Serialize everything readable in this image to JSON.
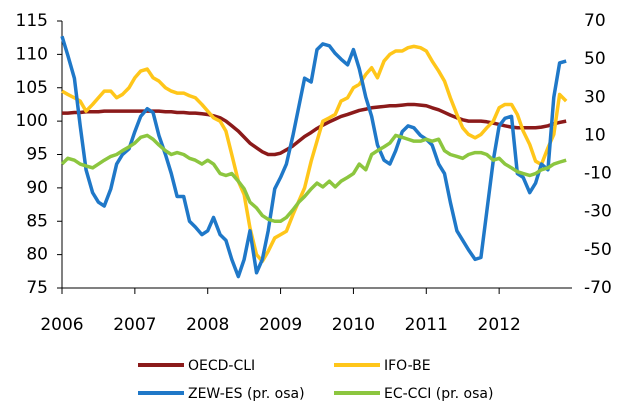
{
  "chart_data": {
    "type": "line",
    "x": [
      2006.0,
      2006.08,
      2006.17,
      2006.25,
      2006.33,
      2006.42,
      2006.5,
      2006.58,
      2006.67,
      2006.75,
      2006.83,
      2006.92,
      2007.0,
      2007.08,
      2007.17,
      2007.25,
      2007.33,
      2007.42,
      2007.5,
      2007.58,
      2007.67,
      2007.75,
      2007.83,
      2007.92,
      2008.0,
      2008.08,
      2008.17,
      2008.25,
      2008.33,
      2008.42,
      2008.5,
      2008.58,
      2008.67,
      2008.75,
      2008.83,
      2008.92,
      2009.0,
      2009.08,
      2009.17,
      2009.25,
      2009.33,
      2009.42,
      2009.5,
      2009.58,
      2009.67,
      2009.75,
      2009.83,
      2009.92,
      2010.0,
      2010.08,
      2010.17,
      2010.25,
      2010.33,
      2010.42,
      2010.5,
      2010.58,
      2010.67,
      2010.75,
      2010.83,
      2010.92,
      2011.0,
      2011.08,
      2011.17,
      2011.25,
      2011.33,
      2011.42,
      2011.5,
      2011.58,
      2011.67,
      2011.75,
      2011.83,
      2011.92,
      2012.0,
      2012.08,
      2012.17,
      2012.25,
      2012.33,
      2012.42,
      2012.5,
      2012.58,
      2012.67,
      2012.75,
      2012.83,
      2012.92
    ],
    "series": [
      {
        "name": "OECD-CLI",
        "color": "#8b1a1a",
        "axis": "y",
        "values": [
          101.2,
          101.2,
          101.3,
          101.3,
          101.4,
          101.4,
          101.4,
          101.5,
          101.5,
          101.5,
          101.5,
          101.5,
          101.5,
          101.5,
          101.5,
          101.5,
          101.5,
          101.4,
          101.4,
          101.3,
          101.3,
          101.2,
          101.2,
          101.1,
          101.0,
          100.8,
          100.5,
          100.0,
          99.3,
          98.5,
          97.6,
          96.7,
          96.0,
          95.4,
          95.0,
          95.0,
          95.2,
          95.7,
          96.3,
          97.0,
          97.7,
          98.3,
          98.9,
          99.4,
          99.9,
          100.3,
          100.7,
          101.0,
          101.3,
          101.6,
          101.8,
          102.0,
          102.1,
          102.2,
          102.3,
          102.3,
          102.4,
          102.5,
          102.5,
          102.4,
          102.3,
          102.0,
          101.7,
          101.3,
          100.9,
          100.5,
          100.2,
          100.0,
          100.0,
          100.0,
          99.9,
          99.7,
          99.5,
          99.3,
          99.1,
          99.0,
          99.0,
          99.0,
          99.0,
          99.1,
          99.3,
          99.6,
          99.8,
          100.0
        ]
      },
      {
        "name": "IFO-BE",
        "color": "#ffc61a",
        "axis": "y",
        "values": [
          104.5,
          104,
          103.5,
          103,
          101.5,
          102.5,
          103.5,
          104.5,
          104.5,
          103.5,
          104,
          105,
          106.5,
          107.5,
          107.8,
          106.5,
          106,
          105,
          104.5,
          104.2,
          104.2,
          103.8,
          103.5,
          102.5,
          101.5,
          100.5,
          100,
          98.5,
          95,
          91,
          89,
          84,
          80,
          79,
          80.5,
          82.5,
          83,
          83.5,
          86,
          88,
          90,
          94,
          97,
          100,
          100.5,
          101,
          103,
          103.5,
          105,
          105.5,
          107,
          108,
          106.5,
          109,
          110,
          110.5,
          110.5,
          111,
          111.2,
          111,
          110.5,
          109,
          107.5,
          106,
          103.5,
          101,
          99,
          98,
          97.5,
          98,
          99,
          100,
          102,
          102.5,
          102.5,
          101,
          98.5,
          96.5,
          94,
          93.5,
          96,
          98,
          104,
          103
        ]
      },
      {
        "name": "ZEW-ES (pr. osa)",
        "color": "#1f78c8",
        "axis": "y2",
        "values": [
          62,
          52,
          40,
          15,
          -8,
          -20,
          -25,
          -27,
          -18,
          -5,
          0,
          3,
          12,
          20,
          24,
          22,
          10,
          0,
          -10,
          -22,
          -22,
          -35,
          -38,
          -42,
          -40,
          -33,
          -42,
          -45,
          -55,
          -64,
          -55,
          -40,
          -62,
          -55,
          -40,
          -18,
          -12,
          -5,
          10,
          25,
          40,
          38,
          55,
          58,
          57,
          53,
          50,
          47,
          55,
          45,
          30,
          20,
          5,
          -3,
          -5,
          2,
          12,
          15,
          14,
          10,
          8,
          5,
          -5,
          -10,
          -25,
          -40,
          -45,
          -50,
          -55,
          -54,
          -30,
          -3,
          15,
          19,
          20,
          -10,
          -12,
          -20,
          -15,
          -5,
          -8,
          30,
          48,
          49
        ]
      },
      {
        "name": "EC-CCI (pr. osa)",
        "color": "#8cc63f",
        "axis": "y2",
        "values": [
          -5,
          -2,
          -3,
          -5,
          -6,
          -7,
          -5,
          -3,
          -1,
          0,
          2,
          4,
          6,
          9,
          10,
          8,
          5,
          2,
          0,
          1,
          0,
          -2,
          -3,
          -5,
          -3,
          -5,
          -10,
          -11,
          -10,
          -14,
          -18,
          -25,
          -28,
          -32,
          -34,
          -35,
          -35,
          -33,
          -29,
          -25,
          -22,
          -18,
          -15,
          -17,
          -14,
          -17,
          -14,
          -12,
          -10,
          -5,
          -8,
          0,
          2,
          4,
          6,
          10,
          9,
          8,
          7,
          7,
          8,
          7,
          8,
          2,
          0,
          -1,
          -2,
          0,
          1,
          1,
          0,
          -3,
          -2,
          -5,
          -7,
          -9,
          -10,
          -11,
          -10,
          -8,
          -7,
          -5,
          -4,
          -3
        ]
      }
    ],
    "xlim": [
      2006,
      2013
    ],
    "xticks": [
      2006,
      2007,
      2008,
      2009,
      2010,
      2011,
      2012
    ],
    "ylim": [
      75,
      115
    ],
    "yticks": [
      75,
      80,
      85,
      90,
      95,
      100,
      105,
      110,
      115
    ],
    "y2lim": [
      -70,
      70
    ],
    "y2ticks": [
      -70,
      -50,
      -30,
      -10,
      10,
      30,
      50,
      70
    ],
    "grid": false,
    "legend": "bottom"
  }
}
